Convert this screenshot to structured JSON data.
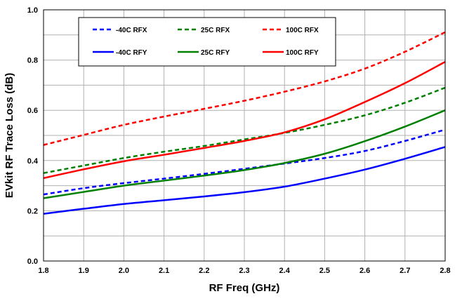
{
  "chart_data": {
    "type": "line",
    "xlabel": "RF Freq (GHz)",
    "ylabel": "EVkit RF Trace Loss (dB)",
    "xlim": [
      1.8,
      2.8
    ],
    "ylim": [
      0.0,
      1.0
    ],
    "xticks": [
      "1.8",
      "1.9",
      "2.0",
      "2.1",
      "2.2",
      "2.3",
      "2.4",
      "2.5",
      "2.6",
      "2.7",
      "2.8"
    ],
    "yticks": [
      "0.0",
      "0.2",
      "0.4",
      "0.6",
      "0.8",
      "1.0"
    ],
    "grid": true,
    "legend_placement": "top-left",
    "x": [
      1.8,
      1.9,
      2.0,
      2.1,
      2.2,
      2.3,
      2.4,
      2.5,
      2.6,
      2.7,
      2.8
    ],
    "series": [
      {
        "name": "-40C RFX",
        "color": "#0000ff",
        "dash": "dashed",
        "values": [
          0.265,
          0.29,
          0.31,
          0.328,
          0.347,
          0.367,
          0.388,
          0.41,
          0.438,
          0.478,
          0.523
        ]
      },
      {
        "name": "25C RFX",
        "color": "#008000",
        "dash": "dashed",
        "values": [
          0.35,
          0.38,
          0.41,
          0.435,
          0.458,
          0.484,
          0.51,
          0.542,
          0.58,
          0.63,
          0.69
        ]
      },
      {
        "name": "100C RFX",
        "color": "#ff0000",
        "dash": "dashed",
        "values": [
          0.462,
          0.502,
          0.542,
          0.575,
          0.606,
          0.638,
          0.674,
          0.715,
          0.766,
          0.833,
          0.911
        ]
      },
      {
        "name": "-40C RFY",
        "color": "#0000ff",
        "dash": "solid",
        "values": [
          0.188,
          0.208,
          0.227,
          0.242,
          0.257,
          0.274,
          0.296,
          0.328,
          0.364,
          0.407,
          0.454
        ]
      },
      {
        "name": "25C RFY",
        "color": "#008000",
        "dash": "solid",
        "values": [
          0.25,
          0.275,
          0.3,
          0.32,
          0.34,
          0.362,
          0.39,
          0.427,
          0.477,
          0.535,
          0.6
        ]
      },
      {
        "name": "100C RFY",
        "color": "#ff0000",
        "dash": "solid",
        "values": [
          0.33,
          0.365,
          0.397,
          0.423,
          0.45,
          0.478,
          0.512,
          0.564,
          0.633,
          0.708,
          0.793
        ]
      }
    ]
  }
}
